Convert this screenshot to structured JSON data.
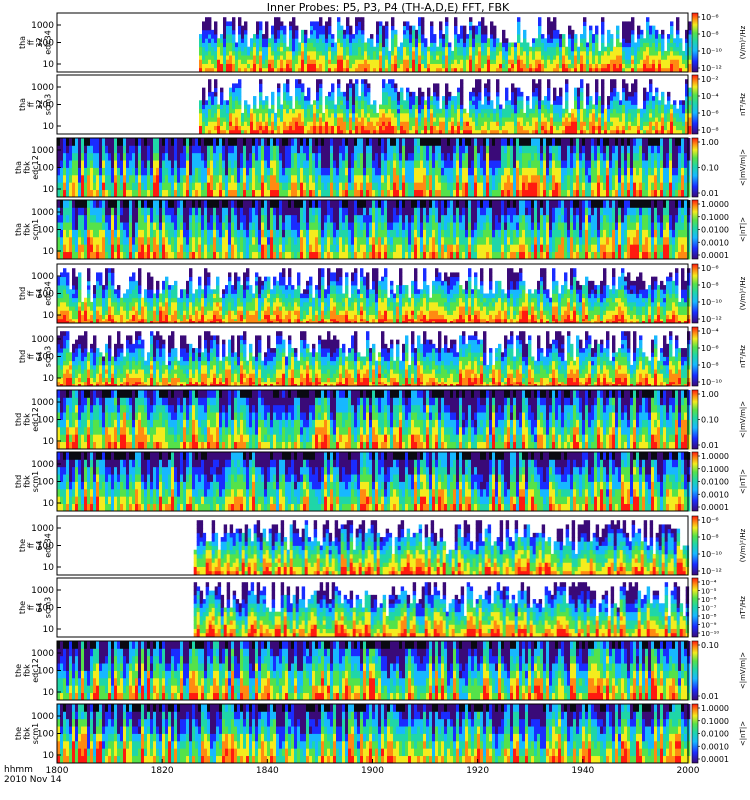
{
  "title": "Inner Probes: P5, P3, P4 (TH-A,D,E) FFT, FBK",
  "footer": {
    "line1": "hhmm",
    "line2": "2010 Nov 14"
  },
  "chart_data": {
    "type": "heatmap",
    "x_tick_labels": [
      "1800",
      "1820",
      "1840",
      "1900",
      "1920",
      "1940",
      "2000"
    ],
    "panels": [
      {
        "label": [
          "tha",
          "ff",
          "32",
          "edc34"
        ],
        "y_ticks": [
          "1000",
          "100",
          "10"
        ],
        "data_start": "1827",
        "cbar_ticks": [
          "10⁻⁶",
          "10⁻⁸",
          "10⁻¹⁰",
          "10⁻¹²"
        ],
        "units": "(V/m)²/Hz"
      },
      {
        "label": [
          "tha",
          "ff",
          "32",
          "scm3"
        ],
        "y_ticks": [
          "1000",
          "100",
          "10"
        ],
        "data_start": "1827",
        "cbar_ticks": [
          "10⁻²",
          "10⁻⁴",
          "10⁻⁶",
          "10⁻⁸"
        ],
        "units": "nT²/Hz"
      },
      {
        "label": [
          "tha",
          "fbk",
          "edc12"
        ],
        "y_ticks": [
          "1000",
          "100",
          "10"
        ],
        "data_start": "1800",
        "cbar_ticks": [
          "1.00",
          "0.10",
          "0.01"
        ],
        "units": "<|mV/m|>"
      },
      {
        "label": [
          "tha",
          "fbk",
          "scm1"
        ],
        "y_ticks": [
          "1000",
          "100",
          "10"
        ],
        "data_start": "1800",
        "cbar_ticks": [
          "1.0000",
          "0.1000",
          "0.0100",
          "0.0010",
          "0.0001"
        ],
        "units": "<|nT|>"
      },
      {
        "label": [
          "thd",
          "ff",
          "64",
          "edc34"
        ],
        "y_ticks": [
          "1000",
          "100",
          "10"
        ],
        "data_start": "1800",
        "cbar_ticks": [
          "10⁻⁶",
          "10⁻⁸",
          "10⁻¹⁰",
          "10⁻¹²"
        ],
        "units": "(V/m)²/Hz"
      },
      {
        "label": [
          "thd",
          "ff",
          "64",
          "scm3"
        ],
        "y_ticks": [
          "1000",
          "100",
          "10"
        ],
        "data_start": "1800",
        "cbar_ticks": [
          "10⁻⁴",
          "10⁻⁶",
          "10⁻⁸",
          "10⁻¹⁰"
        ],
        "units": "nT²/Hz"
      },
      {
        "label": [
          "thd",
          "fbk",
          "edc12"
        ],
        "y_ticks": [
          "1000",
          "100",
          "10"
        ],
        "data_start": "1800",
        "cbar_ticks": [
          "1.00",
          "0.10",
          "0.01"
        ],
        "units": "<|mV/m|>"
      },
      {
        "label": [
          "thd",
          "fbk",
          "scm1"
        ],
        "y_ticks": [
          "1000",
          "100",
          "10"
        ],
        "data_start": "1800",
        "cbar_ticks": [
          "1.0000",
          "0.1000",
          "0.0100",
          "0.0010",
          "0.0001"
        ],
        "units": "<|nT|>"
      },
      {
        "label": [
          "the",
          "ff",
          "64",
          "edc34"
        ],
        "y_ticks": [
          "1000",
          "100",
          "10"
        ],
        "data_start": "1826",
        "cbar_ticks": [
          "10⁻⁶",
          "10⁻⁸",
          "10⁻¹⁰",
          "10⁻¹²"
        ],
        "units": "(V/m)²/Hz"
      },
      {
        "label": [
          "the",
          "ff",
          "64",
          "scm3"
        ],
        "y_ticks": [
          "1000",
          "100",
          "10"
        ],
        "data_start": "1826",
        "cbar_ticks": [
          "10⁻⁴",
          "10⁻⁵",
          "10⁻⁶",
          "10⁻⁷",
          "10⁻⁸",
          "10⁻⁹",
          "10⁻¹⁰"
        ],
        "units": "nT²/Hz"
      },
      {
        "label": [
          "the",
          "fbk",
          "edc12"
        ],
        "y_ticks": [
          "1000",
          "100",
          "10"
        ],
        "data_start": "1800",
        "cbar_ticks": [
          "0.10",
          "0.01"
        ],
        "units": "<|mV/m|>"
      },
      {
        "label": [
          "the",
          "fbk",
          "scm1"
        ],
        "y_ticks": [
          "1000",
          "100",
          "10"
        ],
        "data_start": "1800",
        "cbar_ticks": [
          "1.0000",
          "0.1000",
          "0.0100",
          "0.0010",
          "0.0001"
        ],
        "units": "<|nT|>"
      }
    ]
  }
}
